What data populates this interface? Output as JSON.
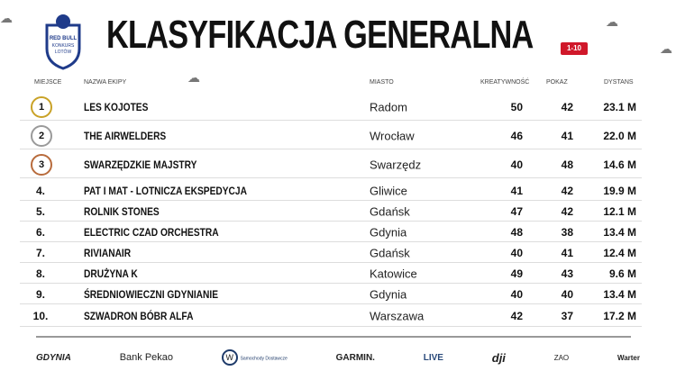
{
  "header": {
    "title": "KLASYFIKACJA GENERALNA",
    "range_badge": "1-10",
    "logo_text": "RED BULL KONKURS LOTÓW"
  },
  "columns": {
    "place": "MIEJSCE",
    "team": "NAZWA EKIPY",
    "city": "MIASTO",
    "creativity": "KREATYWNOŚĆ",
    "show": "POKAZ",
    "distance": "DYSTANS"
  },
  "rows": [
    {
      "place": "1",
      "team": "LES KOJOTES",
      "city": "Radom",
      "creativity": "50",
      "show": "42",
      "distance": "23.1 M"
    },
    {
      "place": "2",
      "team": "THE AIRWELDERS",
      "city": "Wrocław",
      "creativity": "46",
      "show": "41",
      "distance": "22.0 M"
    },
    {
      "place": "3",
      "team": "SWARZĘDZKIE MAJSTRY",
      "city": "Swarzędz",
      "creativity": "40",
      "show": "48",
      "distance": "14.6 M"
    },
    {
      "place": "4.",
      "team": "PAT I MAT - LOTNICZA EKSPEDYCJA",
      "city": "Gliwice",
      "creativity": "41",
      "show": "42",
      "distance": "19.9 M"
    },
    {
      "place": "5.",
      "team": "ROLNIK STONES",
      "city": "Gdańsk",
      "creativity": "47",
      "show": "42",
      "distance": "12.1 M"
    },
    {
      "place": "6.",
      "team": "ELECTRIC CZAD ORCHESTRA",
      "city": "Gdynia",
      "creativity": "48",
      "show": "38",
      "distance": "13.4 M"
    },
    {
      "place": "7.",
      "team": "RIVIANAIR",
      "city": "Gdańsk",
      "creativity": "40",
      "show": "41",
      "distance": "12.4 M"
    },
    {
      "place": "8.",
      "team": "DRUŻYNA K",
      "city": "Katowice",
      "creativity": "49",
      "show": "43",
      "distance": "9.6 M"
    },
    {
      "place": "9.",
      "team": "ŚREDNIOWIECZNI GDYNIANIE",
      "city": "Gdynia",
      "creativity": "40",
      "show": "40",
      "distance": "13.4 M"
    },
    {
      "place": "10.",
      "team": "SZWADRON BÓBR ALFA",
      "city": "Warszawa",
      "creativity": "42",
      "show": "37",
      "distance": "17.2 M"
    }
  ],
  "sponsors": [
    "GDYNIA",
    "Bank Pekao",
    "Samochody Dostawcze",
    "GARMIN.",
    "LIVE",
    "dji",
    "ZAO",
    "Warter"
  ],
  "colors": {
    "badge": "#d0182a",
    "gold": "#c9a227",
    "silver": "#9a9a9a",
    "bronze": "#b86b3c"
  }
}
